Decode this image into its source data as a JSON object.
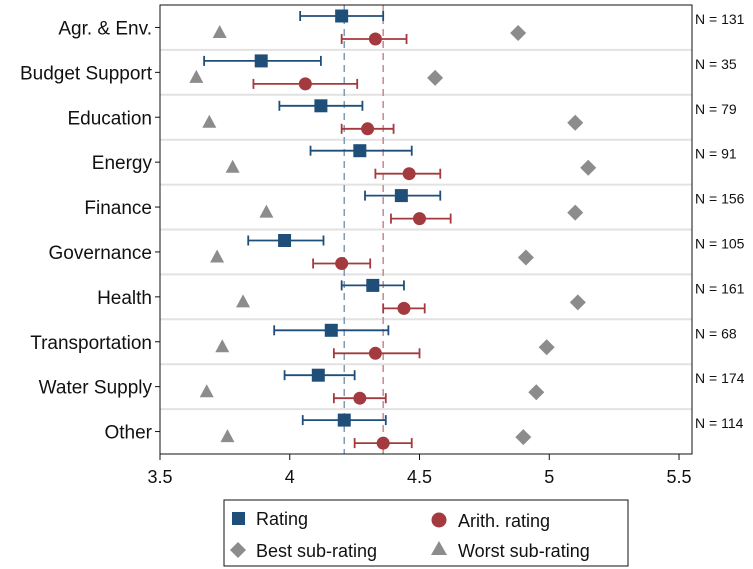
{
  "chart_data": {
    "type": "scatter",
    "title": "",
    "xlabel": "",
    "ylabel": "",
    "xlim": [
      3.5,
      5.55
    ],
    "xticks": [
      "3.5",
      "4",
      "4.5",
      "5",
      "5.5"
    ],
    "xtick_values": [
      3.5,
      4,
      4.5,
      5,
      5.5
    ],
    "categories": [
      "Agr. & Env.",
      "Budget Support",
      "Education",
      "Energy",
      "Finance",
      "Governance",
      "Health",
      "Transportation",
      "Water Supply",
      "Other"
    ],
    "n_labels": [
      "N = 131",
      "N = 35",
      "N = 79",
      "N = 91",
      "N = 156",
      "N = 105",
      "N = 161",
      "N = 68",
      "N = 174",
      "N = 114"
    ],
    "reference_lines": [
      {
        "series": "Rating",
        "value": 4.21,
        "style": "dashed",
        "color": "#7f9bb5"
      },
      {
        "series": "Arith. rating",
        "value": 4.36,
        "style": "dashed",
        "color": "#c9878a"
      }
    ],
    "series": [
      {
        "name": "Rating",
        "marker": "square",
        "color": "#1f4e79",
        "values": [
          4.2,
          3.89,
          4.12,
          4.27,
          4.43,
          3.98,
          4.32,
          4.16,
          4.11,
          4.21
        ],
        "ci_low": [
          4.04,
          3.67,
          3.96,
          4.08,
          4.29,
          3.84,
          4.2,
          3.94,
          3.98,
          4.05
        ],
        "ci_high": [
          4.36,
          4.12,
          4.28,
          4.47,
          4.58,
          4.13,
          4.44,
          4.38,
          4.25,
          4.37
        ]
      },
      {
        "name": "Arith. rating",
        "marker": "circle",
        "color": "#a23a3f",
        "values": [
          4.33,
          4.06,
          4.3,
          4.46,
          4.5,
          4.2,
          4.44,
          4.33,
          4.27,
          4.36
        ],
        "ci_low": [
          4.2,
          3.86,
          4.2,
          4.33,
          4.39,
          4.09,
          4.36,
          4.17,
          4.17,
          4.25
        ],
        "ci_high": [
          4.45,
          4.26,
          4.4,
          4.58,
          4.62,
          4.31,
          4.52,
          4.5,
          4.37,
          4.47
        ]
      },
      {
        "name": "Best sub-rating",
        "marker": "diamond",
        "color": "#8c8c8c",
        "values": [
          4.88,
          4.56,
          5.1,
          5.15,
          5.1,
          4.91,
          5.11,
          4.99,
          4.95,
          4.9
        ]
      },
      {
        "name": "Worst sub-rating",
        "marker": "triangle",
        "color": "#8c8c8c",
        "values": [
          3.73,
          3.64,
          3.69,
          3.78,
          3.91,
          3.72,
          3.82,
          3.74,
          3.68,
          3.76
        ]
      }
    ],
    "grid": true,
    "legend": {
      "position": "bottom",
      "entries": [
        "Rating",
        "Arith. rating",
        "Best sub-rating",
        "Worst sub-rating"
      ]
    }
  }
}
